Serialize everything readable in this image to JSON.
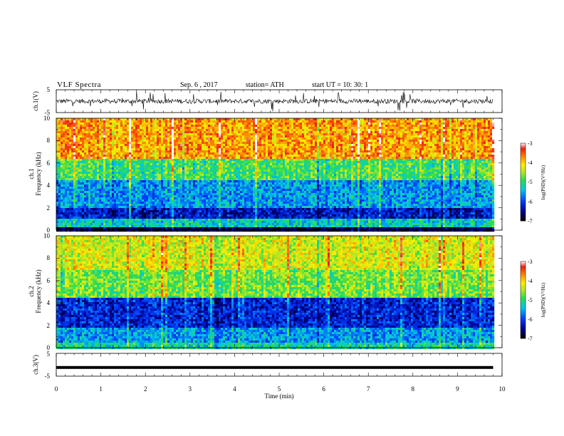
{
  "header": {
    "title": "VLF  Spectra",
    "date": "Sep. 6  , 2017",
    "station": "station= ATH",
    "start_ut": "start  UT  =    10: 30: 1"
  },
  "colors": {
    "background": "#ffffff",
    "axis": "#000000",
    "trace": "#000000"
  },
  "chart_data": [
    {
      "id": "ch1-waveform",
      "type": "line",
      "ylabel": "ch.1(V)",
      "ylim": [
        -5,
        5
      ],
      "yticks": [
        "5",
        "-5"
      ],
      "xlim": [
        0,
        10
      ],
      "description_values": {
        "baseline_v": 0,
        "typical_amplitude_v": 1.0,
        "spike_amplitude_v": 4.5
      },
      "data_end_min": 9.8,
      "grid": false
    },
    {
      "id": "ch1-spectrogram",
      "type": "heatmap",
      "ylabel_top": "ch.1",
      "ylabel": "Frequency  (kHz)",
      "ylim": [
        0,
        10
      ],
      "yticks": [
        "0",
        "2",
        "4",
        "6",
        "8",
        "10"
      ],
      "xlim": [
        0,
        10
      ],
      "data_end_min": 9.8,
      "colorbar": {
        "label": "log(PSD)(V²/Hz)",
        "range": [
          -7,
          -3
        ],
        "ticks": [
          "-3",
          "-4",
          "-5",
          "-6",
          "-7"
        ]
      },
      "bands_khz": [
        {
          "from": 0,
          "to": 0.3,
          "log_psd": -6.8
        },
        {
          "from": 0.3,
          "to": 1.2,
          "log_psd": -5.3
        },
        {
          "from": 1.2,
          "to": 2.0,
          "log_psd": -6.3
        },
        {
          "from": 2.0,
          "to": 4.5,
          "log_psd": -5.6
        },
        {
          "from": 4.5,
          "to": 6.5,
          "log_psd": -4.9
        },
        {
          "from": 6.5,
          "to": 10.0,
          "log_psd": -3.8
        }
      ],
      "grid": false
    },
    {
      "id": "ch2-spectrogram",
      "type": "heatmap",
      "ylabel_top": "ch.2",
      "ylabel": "Frequency  (kHz)",
      "ylim": [
        0,
        10
      ],
      "yticks": [
        "0",
        "2",
        "4",
        "6",
        "8",
        "10"
      ],
      "xlim": [
        0,
        10
      ],
      "data_end_min": 9.8,
      "colorbar": {
        "label": "log(PSD)(V²/Hz)",
        "range": [
          -7,
          -3
        ],
        "ticks": [
          "-3",
          "-4",
          "-5",
          "-6",
          "-7"
        ]
      },
      "bands_khz": [
        {
          "from": 0,
          "to": 0.6,
          "log_psd": -5.2
        },
        {
          "from": 0.6,
          "to": 1.8,
          "log_psd": -5.6
        },
        {
          "from": 1.8,
          "to": 4.5,
          "log_psd": -6.2
        },
        {
          "from": 4.5,
          "to": 7.0,
          "log_psd": -4.7
        },
        {
          "from": 7.0,
          "to": 10.0,
          "log_psd": -4.3
        }
      ],
      "grid": false
    },
    {
      "id": "ch3-waveform",
      "type": "line",
      "ylabel": "ch.3(V)",
      "ylim": [
        -5,
        5
      ],
      "yticks": [
        "5",
        "-5"
      ],
      "xlim": [
        0,
        10
      ],
      "description_values": {
        "constant_level_v": -1.2
      },
      "data_end_min": 9.8,
      "xlabel": "Time  (min)",
      "xticks": [
        "0",
        "1",
        "2",
        "3",
        "4",
        "5",
        "6",
        "7",
        "8",
        "9",
        "10"
      ],
      "grid": false
    }
  ]
}
